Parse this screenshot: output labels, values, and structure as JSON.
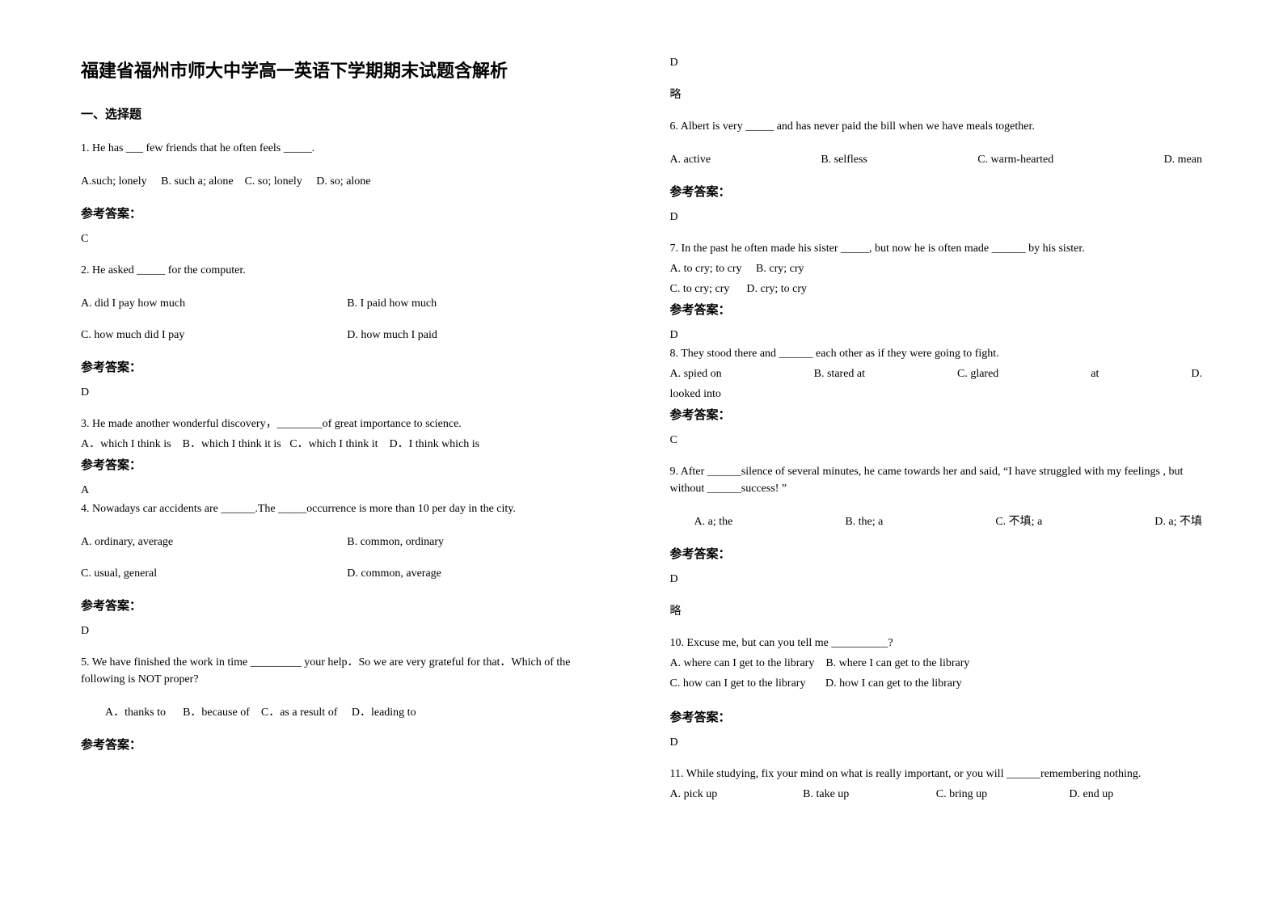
{
  "title": "福建省福州市师大中学高一英语下学期期末试题含解析",
  "section1": "一、选择题",
  "ans_label": "参考答案：",
  "abbr": "略",
  "q1": {
    "text": "1. He has ___ few friends that he often feels _____.",
    "a": "A.such; lonely",
    "b": "B. such a; alone",
    "c": "C. so; lonely",
    "d": "D. so; alone",
    "ans": "C"
  },
  "q2": {
    "text": "2. He asked _____ for the computer.",
    "a": "A. did I pay how much",
    "b": "B. I paid how much",
    "c": "C. how much did I pay",
    "d": "D. how much I paid",
    "ans": "D"
  },
  "q3": {
    "text": "3. He made another wonderful discovery，________of great importance to science.",
    "a": "A．which I think is",
    "b": "B．which I think it is",
    "c": "C．which I think it",
    "d": "D．I think which is",
    "ans": "A"
  },
  "q4": {
    "text": "4. Nowadays car accidents are ______.The _____occurrence is more than 10 per day in the city.",
    "a": "A. ordinary, average",
    "b": "B. common, ordinary",
    "c": "C. usual, general",
    "d": "D. common, average",
    "ans": "D"
  },
  "q5": {
    "text": "5. We have finished the work in time _________ your help．So we are very grateful for that．Which of the following is NOT proper?",
    "a": "A．thanks to",
    "b": "B．because of",
    "c": "C．as a result of",
    "d": "D．leading to",
    "ans": "D"
  },
  "q6": {
    "text": "6. Albert is very _____ and has never paid the bill when we have meals together.",
    "a": "A. active",
    "b": "B. selfless",
    "c": "C. warm-hearted",
    "d": "D. mean",
    "ans": "D"
  },
  "q7": {
    "text": "7. In the past he often made his sister _____, but now he is often made ______ by his sister.",
    "a": "A. to cry; to cry",
    "b": "B. cry; cry",
    "c": "C. to cry; cry",
    "d": "D. cry; to cry",
    "ans": "D"
  },
  "q8": {
    "text": "8. They stood there and ______ each other as if they were going to fight.",
    "a": "A. spied on",
    "b": "B. stared at",
    "c": "C. glared",
    "cat": "at",
    "d": "D. looked into",
    "ans": "C"
  },
  "q9": {
    "text": "9. After ______silence of several minutes, he came towards her and said, “I have struggled with my feelings , but without ______success! ”",
    "a": "A. a; the",
    "b": "B. the; a",
    "c": "C. 不填; a",
    "d": "D. a; 不填",
    "ans": "D"
  },
  "q10": {
    "text": "10. Excuse me, but can you tell me __________?",
    "a": "A. where can I get to the library",
    "b": "B. where I can get to the library",
    "c": "C. how can I get to the library",
    "d": "D. how I can get to the library",
    "ans": "D"
  },
  "q11": {
    "text": "11. While studying, fix your mind on what is really important, or you will ______remembering nothing.",
    "a": "A. pick up",
    "b": "B. take up",
    "c": "C. bring up",
    "d": "D. end up"
  }
}
